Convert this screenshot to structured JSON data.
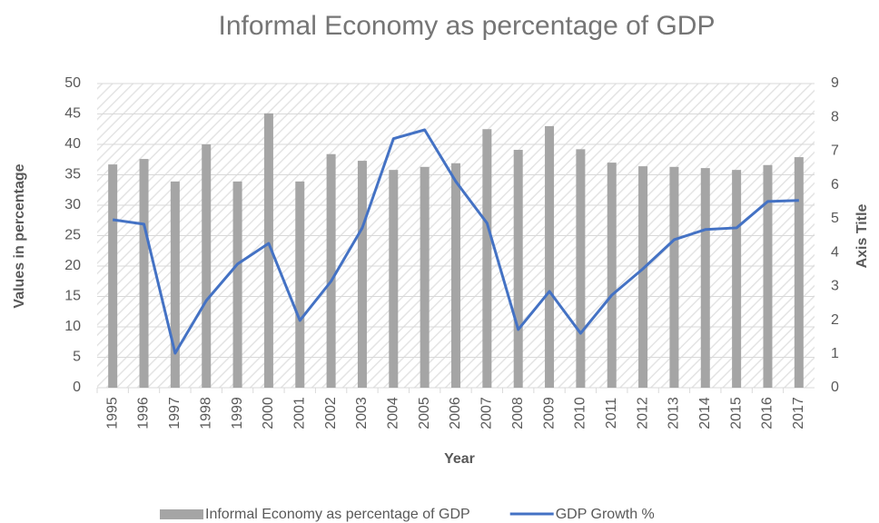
{
  "chart_data": {
    "type": "bar-line",
    "title": "Informal Economy as percentage of GDP",
    "x_label": "Year",
    "y_label": "Values in percentage",
    "y2_label": "Axis Title",
    "categories": [
      "1995",
      "1996",
      "1997",
      "1998",
      "1999",
      "2000",
      "2001",
      "2002",
      "2003",
      "2004",
      "2005",
      "2006",
      "2007",
      "2008",
      "2009",
      "2010",
      "2011",
      "2012",
      "2013",
      "2014",
      "2015",
      "2016",
      "2017"
    ],
    "series": [
      {
        "name": "Informal Economy as percentage of GDP",
        "type": "bar",
        "color": "#a5a5a5",
        "values": [
          36.7,
          37.6,
          33.9,
          40,
          33.9,
          45.1,
          33.9,
          38.4,
          37.3,
          35.8,
          36.3,
          36.9,
          42.5,
          39.1,
          43,
          39.2,
          37,
          36.4,
          36.3,
          36.1,
          35.8,
          36.6,
          37.9
        ]
      },
      {
        "name": "GDP Growth %",
        "type": "line",
        "axis": "y2",
        "color": "#4472c4",
        "values": [
          4.97,
          4.84,
          1.02,
          2.58,
          3.66,
          4.27,
          1.99,
          3.15,
          4.73,
          7.37,
          7.63,
          6.1,
          4.87,
          1.72,
          2.85,
          1.61,
          2.74,
          3.52,
          4.38,
          4.68,
          4.73,
          5.51,
          5.54
        ]
      }
    ],
    "ylim": [
      0,
      50
    ],
    "yticks": [
      0,
      5,
      10,
      15,
      20,
      25,
      30,
      35,
      40,
      45,
      50
    ],
    "y2lim": [
      0,
      9
    ],
    "y2ticks": [
      0,
      1,
      2,
      3,
      4,
      5,
      6,
      7,
      8,
      9
    ],
    "grid": true,
    "legend": "bottom"
  }
}
